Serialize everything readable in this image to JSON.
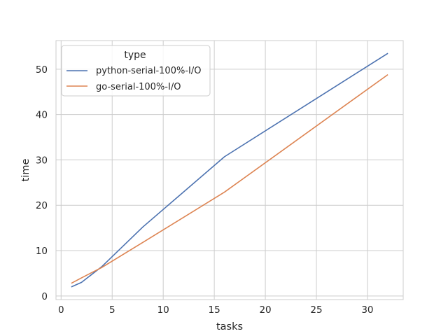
{
  "chart_data": {
    "type": "line",
    "xlabel": "tasks",
    "ylabel": "time",
    "xlim": [
      -0.5,
      33.5
    ],
    "ylim": [
      -0.8,
      56.3
    ],
    "xticks": [
      0,
      5,
      10,
      15,
      20,
      25,
      30
    ],
    "yticks": [
      0,
      10,
      20,
      30,
      40,
      50
    ],
    "grid": true,
    "legend": {
      "title": "type",
      "placement": "top-left"
    },
    "series": [
      {
        "name": "python-serial-100%-I/O",
        "color": "#4c72b0",
        "x": [
          1,
          2,
          4,
          8,
          16,
          32
        ],
        "y": [
          2.0,
          3.0,
          6.5,
          15.2,
          30.7,
          53.5
        ]
      },
      {
        "name": "go-serial-100%-I/O",
        "color": "#dd8452",
        "x": [
          1,
          2,
          4,
          8,
          16,
          32
        ],
        "y": [
          2.8,
          4.0,
          6.3,
          11.8,
          22.9,
          48.8
        ]
      }
    ]
  }
}
